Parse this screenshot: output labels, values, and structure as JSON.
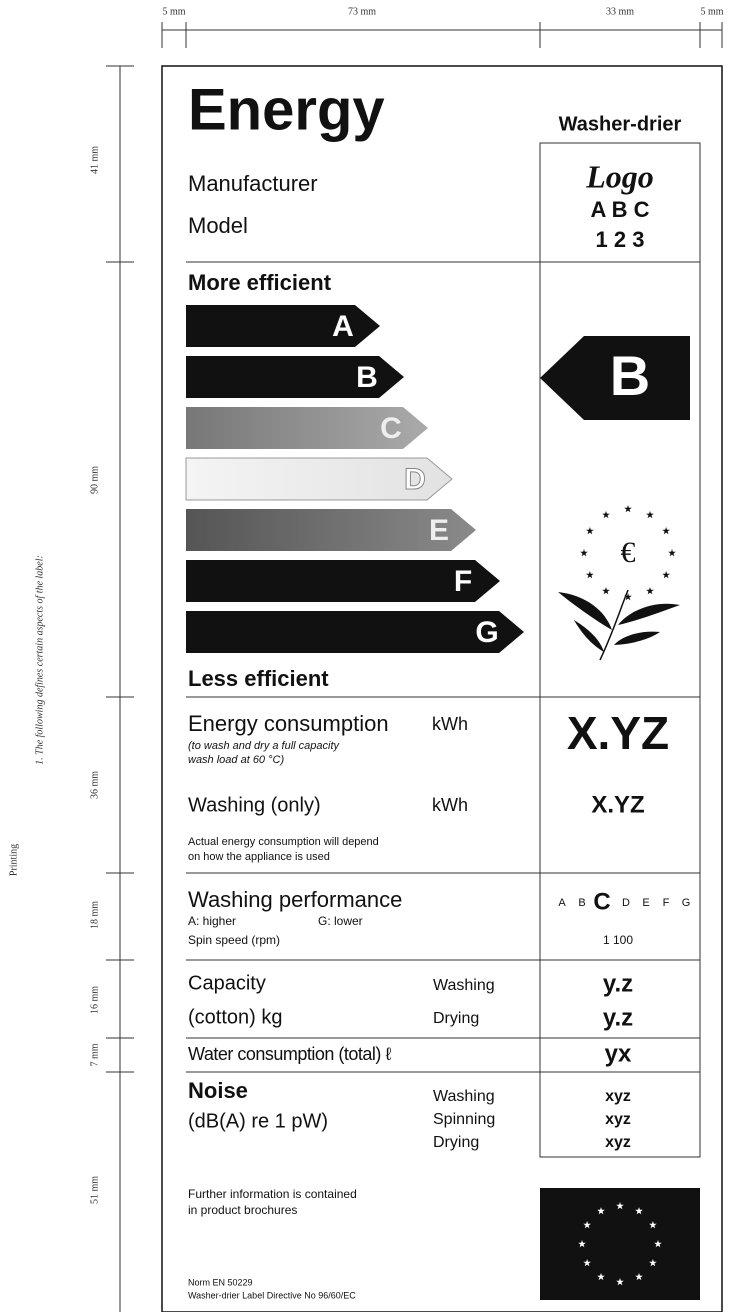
{
  "dimensions": {
    "top": [
      "5 mm",
      "73 mm",
      "33 mm",
      "5 mm"
    ],
    "left": [
      "41 mm",
      "90 mm",
      "36 mm",
      "18 mm",
      "16 mm",
      "7 mm",
      "51 mm"
    ]
  },
  "side_text": {
    "heading": "Printing",
    "item": "1. The following defines certain aspects of the label:"
  },
  "label": {
    "title": "Energy",
    "appliance": "Washer-drier",
    "manufacturer": "Manufacturer",
    "model": "Model",
    "logo": [
      "Logo",
      "A B C",
      "1 2 3"
    ],
    "more_efficient": "More efficient",
    "classes": [
      "A",
      "B",
      "C",
      "D",
      "E",
      "F",
      "G"
    ],
    "rating": "B",
    "less_efficient": "Less efficient",
    "energy": {
      "label": "Energy consumption",
      "unit": "kWh",
      "note": [
        "(to wash and dry a full capacity",
        "wash load at 60 °C)"
      ],
      "value": "X.YZ"
    },
    "washing": {
      "label": "Washing (only)",
      "unit": "kWh",
      "value": "X.YZ",
      "note": [
        "Actual energy consumption will depend",
        "on how the appliance is used"
      ]
    },
    "performance": {
      "label": "Washing performance",
      "higher": "A: higher",
      "lower": "G: lower",
      "spin": "Spin speed (rpm)",
      "scale": [
        "A",
        "B",
        "C",
        "D",
        "E",
        "F",
        "G"
      ],
      "spin_value": "1 100"
    },
    "capacity": {
      "label": [
        "Capacity",
        "(cotton) kg"
      ],
      "modes": [
        "Washing",
        "Drying"
      ],
      "values": [
        "y.z",
        "y.z"
      ]
    },
    "water": {
      "label": "Water consumption (total) ℓ",
      "value": "yx"
    },
    "noise": {
      "label": "Noise",
      "unit": "(dB(A) re 1 pW)",
      "modes": [
        "Washing",
        "Spinning",
        "Drying"
      ],
      "values": [
        "xyz",
        "xyz",
        "xyz"
      ]
    },
    "footer": {
      "info": [
        "Further information is contained",
        "in product brochures"
      ],
      "norm": "Norm EN 50229",
      "directive": "Washer-drier Label Directive No 96/60/EC"
    }
  }
}
